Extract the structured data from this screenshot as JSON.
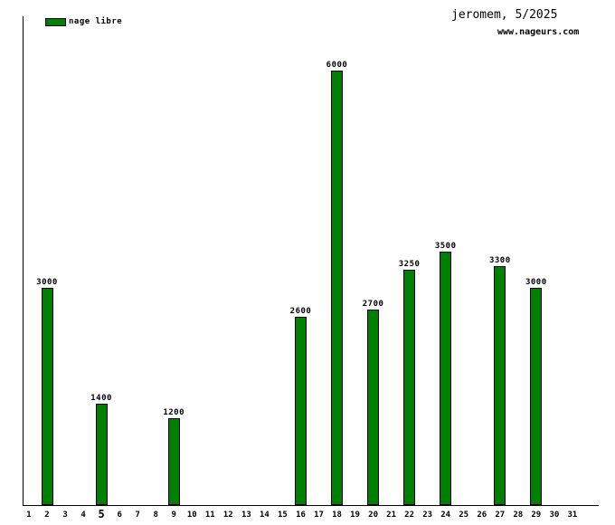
{
  "header": {
    "title": "jeromem, 5/2025",
    "site": "www.nageurs.com"
  },
  "legend": {
    "label": "nage libre",
    "color": "#008000"
  },
  "chart_data": {
    "type": "bar",
    "title": "jeromem, 5/2025",
    "watermark": "www.nageurs.com",
    "series_name": "nage libre",
    "bar_color": "#008000",
    "categories": [
      "1",
      "2",
      "3",
      "4",
      "5",
      "6",
      "7",
      "8",
      "9",
      "10",
      "11",
      "12",
      "13",
      "14",
      "15",
      "16",
      "17",
      "18",
      "19",
      "20",
      "21",
      "22",
      "23",
      "24",
      "25",
      "26",
      "27",
      "28",
      "29",
      "30",
      "31"
    ],
    "highlighted_category": "5",
    "points": [
      {
        "day": "2",
        "value": 3000
      },
      {
        "day": "5",
        "value": 1400
      },
      {
        "day": "9",
        "value": 1200
      },
      {
        "day": "16",
        "value": 2600
      },
      {
        "day": "18",
        "value": 6000
      },
      {
        "day": "20",
        "value": 2700
      },
      {
        "day": "22",
        "value": 3250
      },
      {
        "day": "24",
        "value": 3500
      },
      {
        "day": "27",
        "value": 3300
      },
      {
        "day": "29",
        "value": 3000
      }
    ],
    "xlabel": "",
    "ylabel": "",
    "ylim": [
      0,
      6760
    ],
    "y_axis_tick_labels": "none",
    "grid": false,
    "legend_position": "top-left"
  }
}
